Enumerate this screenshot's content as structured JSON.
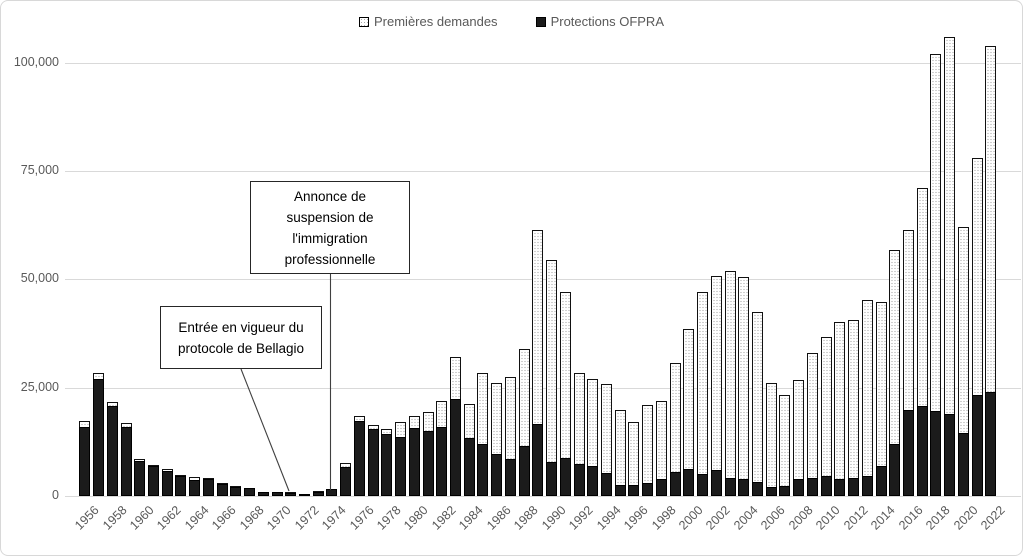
{
  "figure": {
    "background_color": "#ffffff",
    "frame_color": "#d8d8d8",
    "bar_black_color": "#1b1b1b",
    "bar_white_color": "#ffffff",
    "gridline_color": "#d9d9d9",
    "axis_text_color": "#595959"
  },
  "legend": {
    "position": "top-center",
    "items": [
      {
        "label": "Premières demandes",
        "swatch": "dotted-white-square"
      },
      {
        "label": "Protections OFPRA",
        "swatch": "solid-black-square"
      }
    ]
  },
  "chart_data": {
    "type": "bar",
    "overlay": "Black 'Protections OFPRA' bars are drawn from zero in front of the dotted 'Premières demandes' bars (not additively stacked).",
    "title": "",
    "xlabel": "",
    "ylabel": "",
    "ylim": [
      0,
      100000
    ],
    "grid": true,
    "legend_position": "top",
    "y_ticks": [
      {
        "value": 0,
        "label": "0"
      },
      {
        "value": 25000,
        "label": "25,000"
      },
      {
        "value": 50000,
        "label": "50,000"
      },
      {
        "value": 75000,
        "label": "75,000"
      },
      {
        "value": 100000,
        "label": "100,000"
      }
    ],
    "x_tick_years": [
      1956,
      1958,
      1960,
      1962,
      1964,
      1966,
      1968,
      1970,
      1972,
      1974,
      1976,
      1978,
      1980,
      1982,
      1984,
      1986,
      1988,
      1990,
      1992,
      1994,
      1996,
      1998,
      2000,
      2002,
      2004,
      2006,
      2008,
      2010,
      2012,
      2014,
      2016,
      2018,
      2020,
      2022
    ],
    "years": [
      1956,
      1957,
      1958,
      1959,
      1960,
      1961,
      1962,
      1963,
      1964,
      1965,
      1966,
      1967,
      1968,
      1969,
      1970,
      1971,
      1972,
      1973,
      1974,
      1975,
      1976,
      1977,
      1978,
      1979,
      1980,
      1981,
      1982,
      1983,
      1984,
      1985,
      1986,
      1987,
      1988,
      1989,
      1990,
      1991,
      1992,
      1993,
      1994,
      1995,
      1996,
      1997,
      1998,
      1999,
      2000,
      2001,
      2002,
      2003,
      2004,
      2005,
      2006,
      2007,
      2008,
      2009,
      2010,
      2011,
      2012,
      2013,
      2014,
      2015,
      2016,
      2017,
      2018,
      2019,
      2020,
      2021,
      2022
    ],
    "series": [
      {
        "name": "Premières demandes",
        "style": "white-dotted",
        "values": [
          17300,
          28500,
          21800,
          16800,
          8500,
          7200,
          6300,
          4800,
          4500,
          4100,
          2900,
          2300,
          1900,
          1000,
          1000,
          850,
          550,
          1100,
          1700,
          7700,
          18400,
          16400,
          15500,
          17000,
          18400,
          19500,
          22000,
          32200,
          21300,
          28500,
          26000,
          27400,
          34000,
          61300,
          54600,
          47200,
          28400,
          27100,
          25800,
          19800,
          17000,
          21000,
          22000,
          30600,
          38500,
          47000,
          50800,
          52000,
          50500,
          42500,
          26000,
          23300,
          26900,
          33000,
          36600,
          40100,
          40600,
          45300,
          44700,
          56800,
          61300,
          71000,
          102000,
          106000,
          62100,
          78000,
          103800
        ]
      },
      {
        "name": "Protections OFPRA",
        "style": "solid-black",
        "values": [
          16000,
          27000,
          20800,
          15900,
          8200,
          6900,
          5800,
          4600,
          3800,
          3900,
          2800,
          2200,
          1800,
          950,
          950,
          800,
          500,
          1000,
          1600,
          6600,
          17300,
          15400,
          14400,
          13600,
          15600,
          15000,
          16000,
          22300,
          13500,
          12000,
          9700,
          8500,
          11600,
          16700,
          7900,
          8700,
          7300,
          6900,
          5400,
          2600,
          2500,
          3100,
          3900,
          5600,
          6200,
          5200,
          5900,
          4200,
          3900,
          3300,
          2000,
          2400,
          3900,
          4200,
          4600,
          3900,
          4200,
          4600,
          6900,
          12100,
          19800,
          20900,
          19600,
          18900,
          14600,
          23300,
          24000
        ]
      }
    ],
    "annotations": [
      {
        "id": "suspension",
        "text": "Annonce de\nsuspension de\nl'immigration\nprofessionnelle",
        "target_year": 1974
      },
      {
        "id": "bellagio",
        "text": "Entrée en vigueur du\nprotocole de Bellagio",
        "target_year": 1971
      }
    ]
  }
}
